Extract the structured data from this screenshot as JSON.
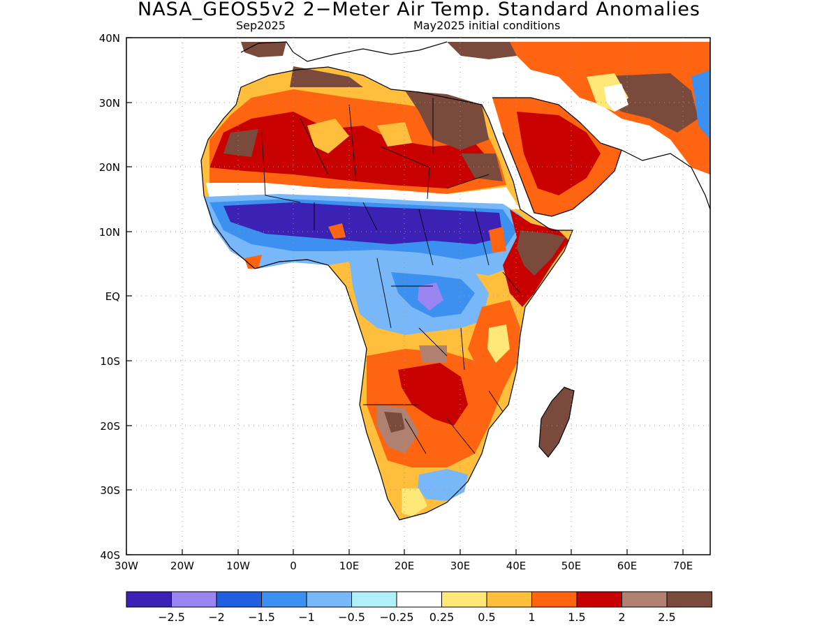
{
  "title": "NASA_GEOS5v2 2−Meter Air Temp. Standard Anomalies",
  "subtitle_left": "Sep2025",
  "subtitle_right": "May2025 initial conditions",
  "map": {
    "lon_range": [
      -30,
      75
    ],
    "lat_range": [
      -40,
      40
    ],
    "lon_ticks": [
      "30W",
      "20W",
      "10W",
      "0",
      "10E",
      "20E",
      "30E",
      "40E",
      "50E",
      "60E",
      "70E"
    ],
    "lat_ticks": [
      "40N",
      "30N",
      "20N",
      "10N",
      "EQ",
      "10S",
      "20S",
      "30S",
      "40S"
    ],
    "grid": "dotted"
  },
  "colorbar": {
    "colors": [
      "#3b22b4",
      "#9a86f2",
      "#2060e0",
      "#3c90f0",
      "#78b8f8",
      "#b0f0f8",
      "#ffffff",
      "#ffe878",
      "#ffbe3c",
      "#ff6410",
      "#c80000",
      "#b08070",
      "#7a4a3c"
    ],
    "labels": [
      "−2.5",
      "−2",
      "−1.5",
      "−1",
      "−0.5",
      "−0.25",
      "0.25",
      "0.5",
      "1",
      "1.5",
      "2",
      "2.5"
    ]
  }
}
